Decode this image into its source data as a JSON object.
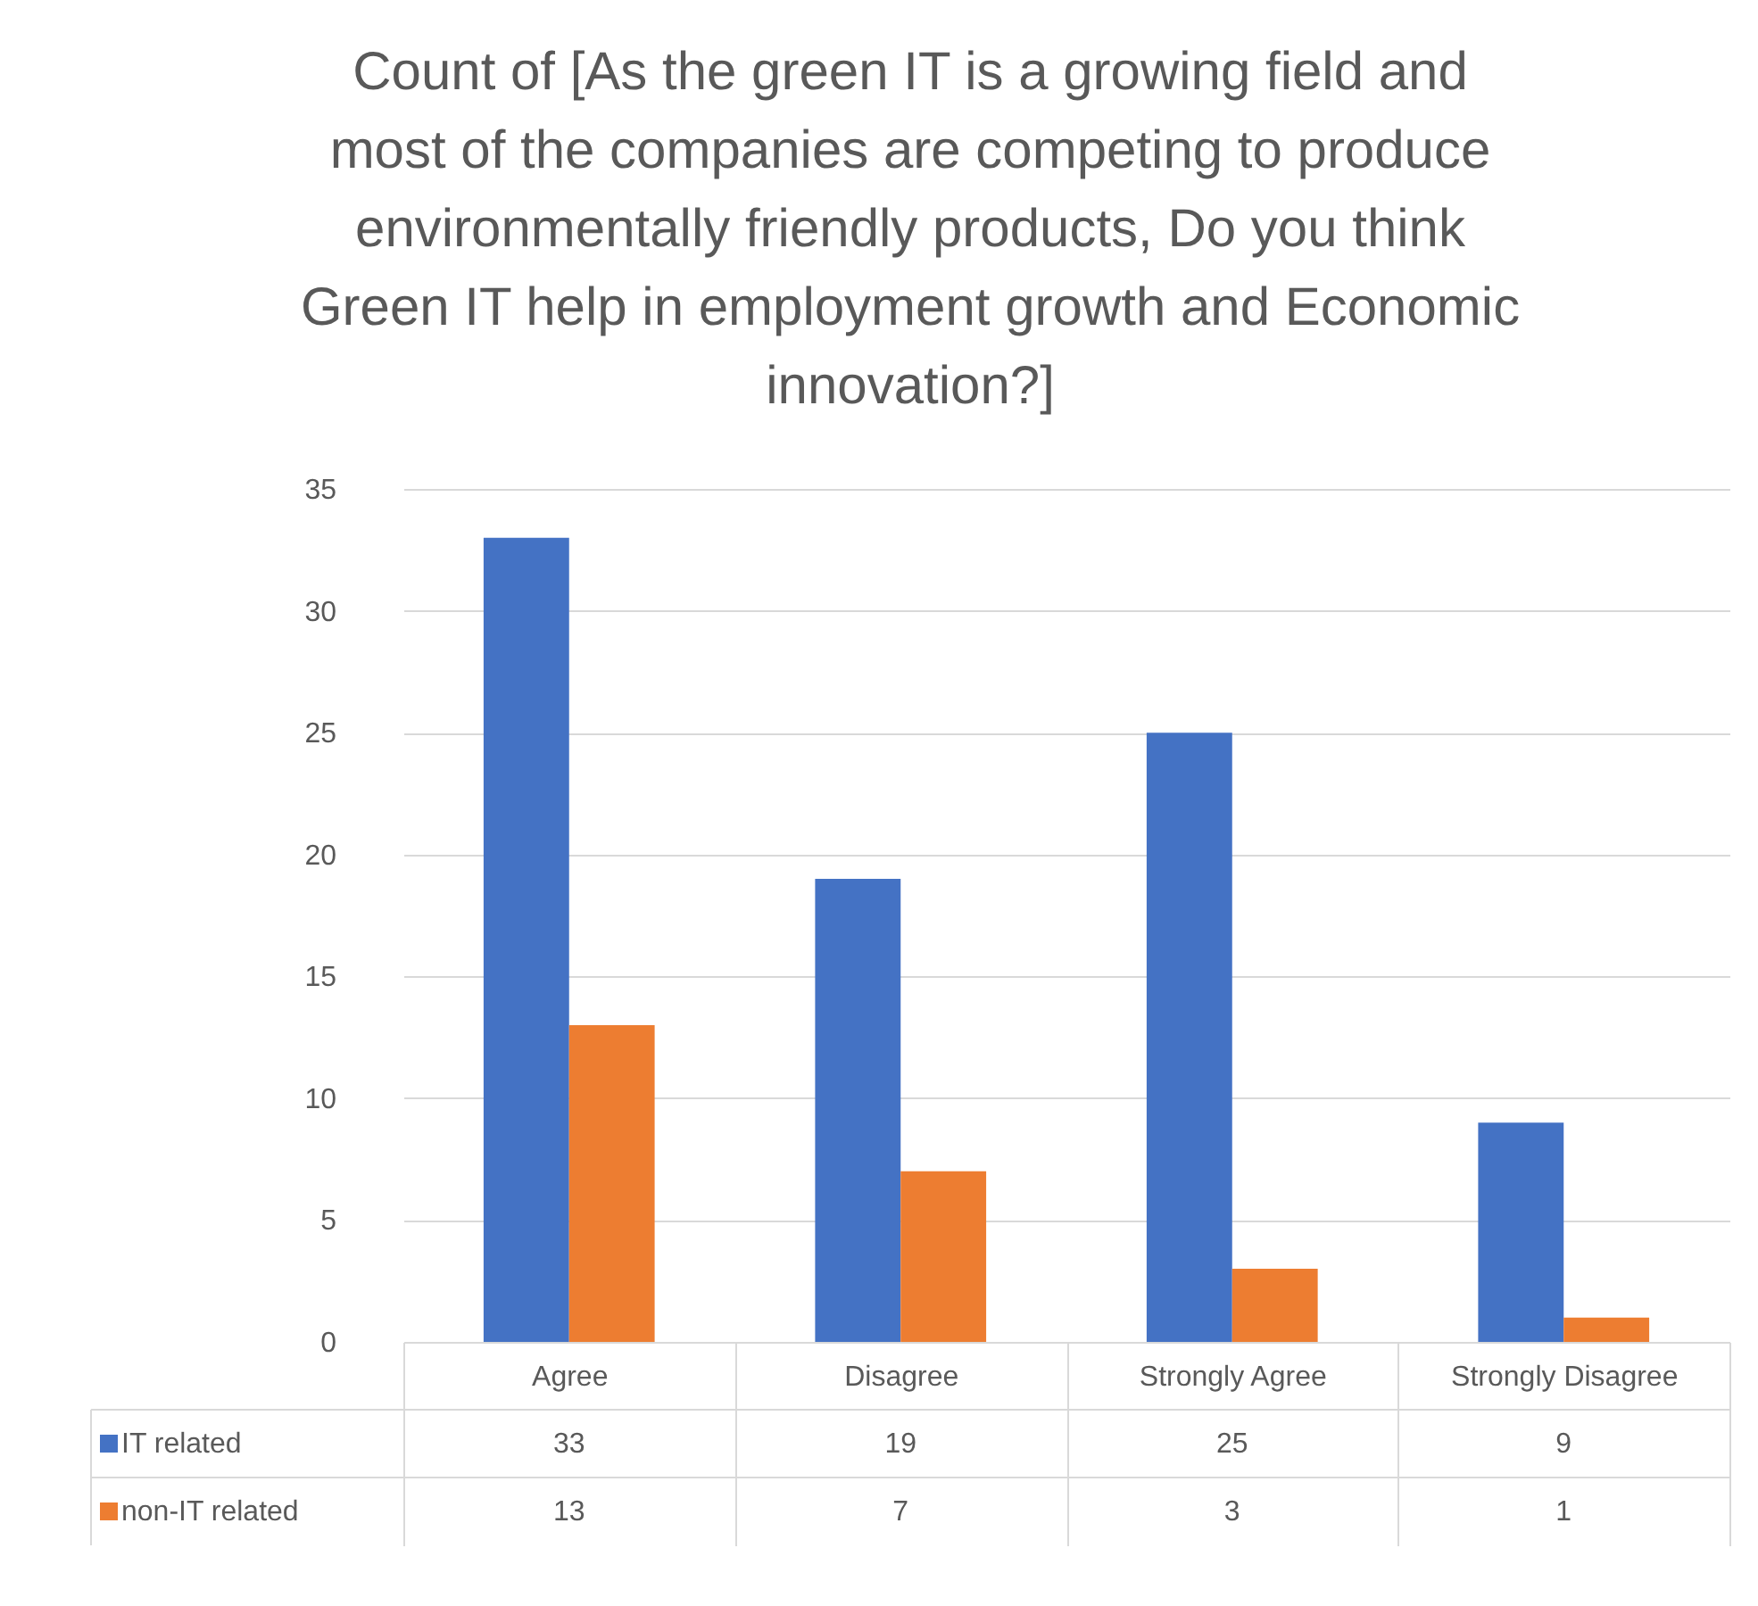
{
  "chart_data": {
    "type": "bar",
    "title": "Count of  [As the green IT is a growing field and most of the companies are competing to produce environmentally friendly products, Do you think Green IT help in employment growth and Economic innovation?]",
    "categories": [
      "Agree",
      "Disagree",
      "Strongly Agree",
      "Strongly Disagree"
    ],
    "series": [
      {
        "name": "IT related",
        "color": "#4472c4",
        "values": [
          33,
          19,
          25,
          9
        ]
      },
      {
        "name": "non-IT related",
        "color": "#ed7d31",
        "values": [
          13,
          7,
          3,
          1
        ]
      }
    ],
    "ylim": [
      0,
      35
    ],
    "yticks": [
      0,
      5,
      10,
      15,
      20,
      25,
      30,
      35
    ],
    "grid": "y",
    "legend": "bottom",
    "data_labels": true
  }
}
